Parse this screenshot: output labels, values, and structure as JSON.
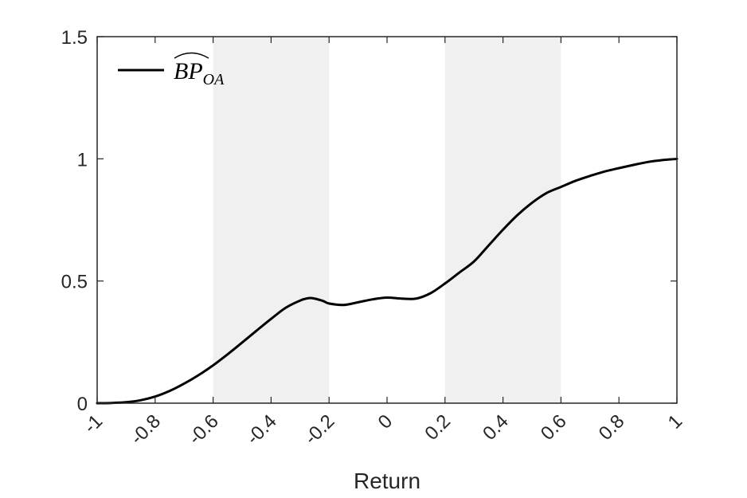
{
  "chart_data": {
    "type": "line",
    "title": "",
    "xlabel": "Return",
    "ylabel": "",
    "xlim": [
      -1,
      1
    ],
    "ylim": [
      0,
      1.5
    ],
    "grid": false,
    "legend_position": "top-left",
    "x_ticks": [
      -1,
      -0.8,
      -0.6,
      -0.4,
      -0.2,
      0,
      0.2,
      0.4,
      0.6,
      0.8,
      1
    ],
    "x_tick_labels": [
      "-1",
      "-0.8",
      "-0.6",
      "-0.4",
      "-0.2",
      "0",
      "0.2",
      "0.4",
      "0.6",
      "0.8",
      "1"
    ],
    "y_ticks": [
      0,
      0.5,
      1,
      1.5
    ],
    "y_tick_labels": [
      "0",
      "0.5",
      "1",
      "1.5"
    ],
    "shaded_regions": [
      {
        "x_start": -0.6,
        "x_end": -0.2,
        "color": "#f0f0f0"
      },
      {
        "x_start": 0.2,
        "x_end": 0.6,
        "color": "#f0f0f0"
      }
    ],
    "series": [
      {
        "name": "BP_OA",
        "legend_base": "BP",
        "legend_subscript": "OA",
        "color": "#000000",
        "x": [
          -1,
          -0.95,
          -0.9,
          -0.85,
          -0.8,
          -0.75,
          -0.7,
          -0.65,
          -0.6,
          -0.55,
          -0.5,
          -0.45,
          -0.4,
          -0.35,
          -0.3,
          -0.27,
          -0.25,
          -0.22,
          -0.2,
          -0.15,
          -0.1,
          -0.05,
          0,
          0.05,
          0.1,
          0.15,
          0.2,
          0.25,
          0.3,
          0.35,
          0.4,
          0.45,
          0.5,
          0.55,
          0.6,
          0.65,
          0.7,
          0.75,
          0.8,
          0.85,
          0.9,
          0.95,
          1
        ],
        "y": [
          0,
          0.001,
          0.004,
          0.012,
          0.027,
          0.05,
          0.08,
          0.115,
          0.155,
          0.2,
          0.248,
          0.297,
          0.345,
          0.39,
          0.42,
          0.43,
          0.428,
          0.418,
          0.408,
          0.402,
          0.413,
          0.425,
          0.432,
          0.428,
          0.428,
          0.45,
          0.49,
          0.535,
          0.58,
          0.645,
          0.71,
          0.77,
          0.82,
          0.86,
          0.885,
          0.91,
          0.93,
          0.948,
          0.962,
          0.975,
          0.987,
          0.995,
          1.0
        ]
      }
    ]
  }
}
